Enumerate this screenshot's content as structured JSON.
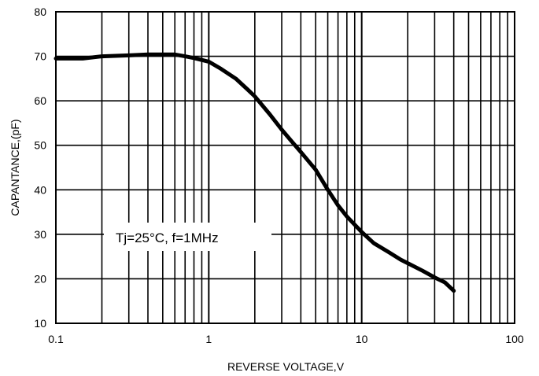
{
  "chart_data": {
    "type": "line",
    "xlabel": "REVERSE VOLTAGE,V",
    "ylabel": "CAPANTANCE,(pF)",
    "x_scale": "log",
    "xlim": [
      0.1,
      100
    ],
    "ylim": [
      10,
      80
    ],
    "x_ticks": [
      {
        "value": 0.1,
        "label": "0.1"
      },
      {
        "value": 1,
        "label": "1"
      },
      {
        "value": 10,
        "label": "10"
      },
      {
        "value": 100,
        "label": "100"
      }
    ],
    "y_ticks": [
      {
        "value": 10,
        "label": "10"
      },
      {
        "value": 20,
        "label": "20"
      },
      {
        "value": 30,
        "label": "30"
      },
      {
        "value": 40,
        "label": "40"
      },
      {
        "value": 50,
        "label": "50"
      },
      {
        "value": 60,
        "label": "60"
      },
      {
        "value": 70,
        "label": "70"
      },
      {
        "value": 80,
        "label": "80"
      }
    ],
    "grid": true,
    "annotation": "Tj=25°C, f=1MHz",
    "series": [
      {
        "color": "#000000",
        "x": [
          0.1,
          0.15,
          0.2,
          0.3,
          0.4,
          0.5,
          0.6,
          0.7,
          0.8,
          1.0,
          1.2,
          1.5,
          1.8,
          2.0,
          2.5,
          3.0,
          3.5,
          4.0,
          5.0,
          6.0,
          7.0,
          8.0,
          10.0,
          12.0,
          15.0,
          18.0,
          20.0,
          25.0,
          30.0,
          35.0,
          40.0
        ],
        "y": [
          69.5,
          69.5,
          70.0,
          70.2,
          70.4,
          70.4,
          70.4,
          70.0,
          69.6,
          68.8,
          67.2,
          65.0,
          62.5,
          61.0,
          57.0,
          53.5,
          50.8,
          48.5,
          44.5,
          40.0,
          36.5,
          34.0,
          30.5,
          28.0,
          26.0,
          24.3,
          23.5,
          21.8,
          20.3,
          19.2,
          17.3
        ]
      }
    ]
  }
}
